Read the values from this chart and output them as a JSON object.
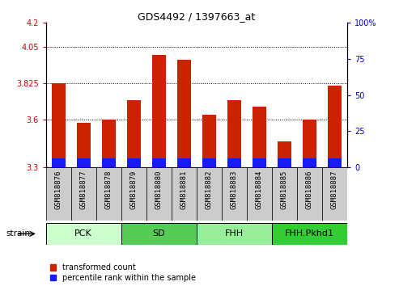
{
  "title": "GDS4492 / 1397663_at",
  "samples": [
    "GSM818876",
    "GSM818877",
    "GSM818878",
    "GSM818879",
    "GSM818880",
    "GSM818881",
    "GSM818882",
    "GSM818883",
    "GSM818884",
    "GSM818885",
    "GSM818886",
    "GSM818887"
  ],
  "red_values": [
    3.825,
    3.575,
    3.6,
    3.72,
    4.0,
    3.97,
    3.63,
    3.72,
    3.68,
    3.46,
    3.6,
    3.81
  ],
  "blue_values": [
    0.055,
    0.055,
    0.055,
    0.055,
    0.055,
    0.055,
    0.055,
    0.055,
    0.055,
    0.055,
    0.055,
    0.055
  ],
  "ylim_left": [
    3.3,
    4.2
  ],
  "ylim_right": [
    0,
    100
  ],
  "yticks_left": [
    3.3,
    3.6,
    3.825,
    4.05,
    4.2
  ],
  "yticks_right": [
    0,
    25,
    50,
    75,
    100
  ],
  "ytick_labels_left": [
    "3.3",
    "3.6",
    "3.825",
    "4.05",
    "4.2"
  ],
  "ytick_labels_right": [
    "0",
    "25",
    "50",
    "75",
    "100%"
  ],
  "grid_lines": [
    4.05,
    3.825,
    3.6
  ],
  "bar_bottom": 3.3,
  "bar_color_red": "#cc2200",
  "bar_color_blue": "#1a1aff",
  "bar_width": 0.55,
  "groups": [
    {
      "label": "PCK",
      "start": 0,
      "end": 3,
      "color": "#ccffcc"
    },
    {
      "label": "SD",
      "start": 3,
      "end": 6,
      "color": "#55cc55"
    },
    {
      "label": "FHH",
      "start": 6,
      "end": 9,
      "color": "#99ee99"
    },
    {
      "label": "FHH.Pkhd1",
      "start": 9,
      "end": 12,
      "color": "#33cc33"
    }
  ],
  "strain_label": "strain",
  "legend_items": [
    {
      "label": "transformed count",
      "color": "#cc2200"
    },
    {
      "label": "percentile rank within the sample",
      "color": "#1a1aff"
    }
  ],
  "cell_bg": "#cccccc",
  "plot_bg": "#ffffff",
  "title_fontsize": 9,
  "tick_fontsize": 7,
  "label_fontsize": 6.5,
  "group_fontsize": 8,
  "legend_fontsize": 7
}
